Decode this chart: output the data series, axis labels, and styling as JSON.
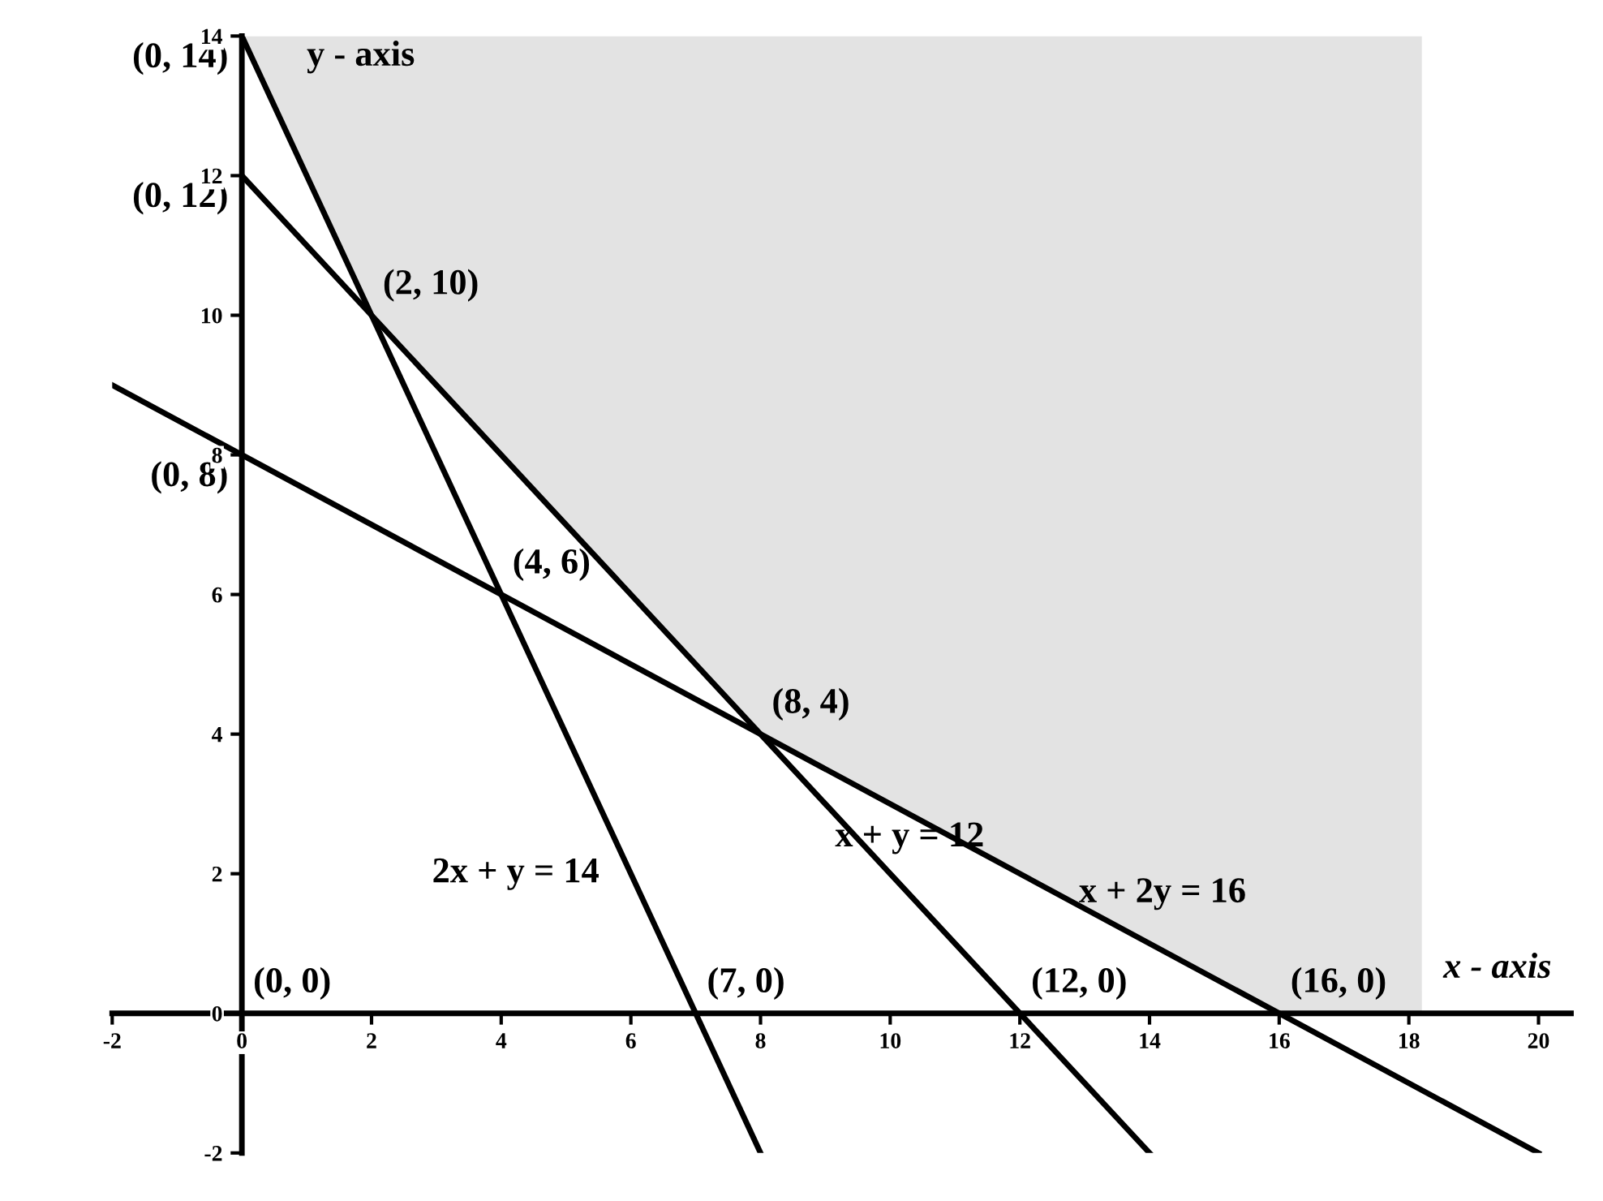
{
  "chart_data": {
    "type": "line",
    "xlabel": "x - axis",
    "ylabel": "y - axis",
    "xlim": [
      -2,
      20.5
    ],
    "ylim": [
      -2,
      14
    ],
    "xticks": [
      -2,
      0,
      2,
      4,
      6,
      8,
      10,
      12,
      14,
      16,
      18,
      20
    ],
    "yticks": [
      -2,
      0,
      2,
      4,
      6,
      8,
      10,
      12,
      14
    ],
    "grid": false,
    "legend": false,
    "marker": "none",
    "line_style": "solid",
    "series": [
      {
        "type": "area",
        "color": "#e3e3e3",
        "x": [
          0,
          2,
          8,
          16,
          18.2,
          18.2,
          0
        ],
        "values": [
          14,
          10,
          4,
          0,
          0,
          14,
          14
        ]
      },
      {
        "color": "#000000",
        "x": [
          0,
          8
        ],
        "values": [
          14,
          -2
        ]
      },
      {
        "color": "#000000",
        "x": [
          0,
          14
        ],
        "values": [
          12,
          -2
        ]
      },
      {
        "color": "#000000",
        "x": [
          -2,
          20
        ],
        "values": [
          9,
          -2
        ]
      }
    ],
    "annotations": [
      {
        "text": "(0, 14)",
        "x": 0,
        "y": 14
      },
      {
        "text": "(0, 12)",
        "x": 0,
        "y": 12
      },
      {
        "text": "(2, 10)",
        "x": 2,
        "y": 10
      },
      {
        "text": "(0, 8)",
        "x": 0,
        "y": 8
      },
      {
        "text": "(4, 6)",
        "x": 4,
        "y": 6
      },
      {
        "text": "(8, 4)",
        "x": 8,
        "y": 4
      },
      "(0, 0)",
      {
        "text": "(7, 0)",
        "x": 7,
        "y": 0
      },
      {
        "text": "(12, 0)",
        "x": 12,
        "y": 0
      },
      {
        "text": "(16, 0)",
        "x": 16,
        "y": 0
      },
      {
        "text": "2x + y = 14",
        "x": 6,
        "y": 2
      },
      {
        "text": "x + y = 12",
        "x": 10.3,
        "y": 1.7
      },
      {
        "text": "x + 2y = 16",
        "x": 14.2,
        "y": 0.9
      }
    ]
  }
}
